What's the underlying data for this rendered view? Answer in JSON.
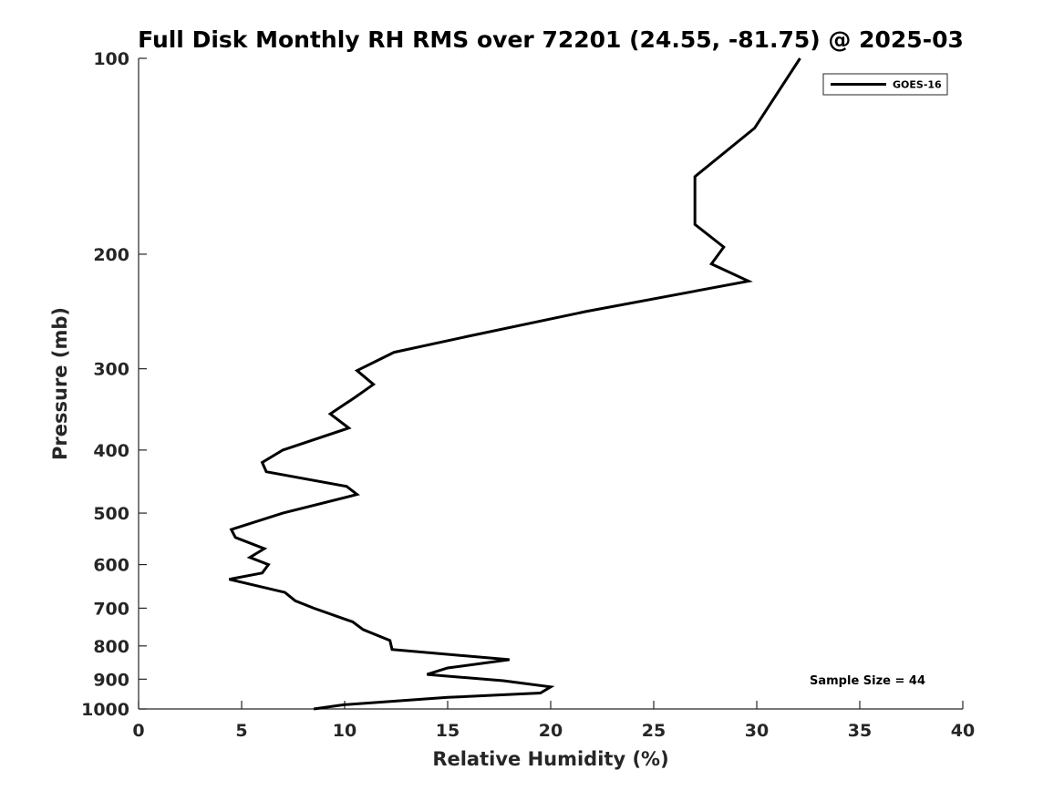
{
  "chart_data": {
    "type": "line",
    "title": "Full Disk Monthly RH RMS over 72201 (24.55, -81.75) @ 2025-03",
    "xlabel": "Relative Humidity (%)",
    "ylabel": "Pressure (mb)",
    "xlim": [
      0,
      40
    ],
    "ylim": [
      100,
      1000
    ],
    "yscale": "log",
    "y_reversed": true,
    "xticks": [
      0,
      5,
      10,
      15,
      20,
      25,
      30,
      35,
      40
    ],
    "yticks": [
      100,
      200,
      300,
      400,
      500,
      600,
      700,
      800,
      900,
      1000
    ],
    "grid": false,
    "legend_position": "top-right",
    "line_color": "#000000",
    "series": [
      {
        "name": "GOES-16",
        "x": [
          32.1,
          29.9,
          27.0,
          27.0,
          28.4,
          27.8,
          29.6,
          21.7,
          16.1,
          12.4,
          10.6,
          11.4,
          10.5,
          9.3,
          10.2,
          7.0,
          6.0,
          6.2,
          10.1,
          10.6,
          7.0,
          4.5,
          4.7,
          6.1,
          5.4,
          6.3,
          6.0,
          4.4,
          7.1,
          7.6,
          8.5,
          10.4,
          10.9,
          12.2,
          12.3,
          18.0,
          15.0,
          14.0,
          17.7,
          20.0,
          19.5,
          15.0,
          10.0,
          8.5
        ],
        "y": [
          100,
          128,
          152,
          180,
          195,
          207,
          220,
          245,
          267,
          283,
          302,
          317,
          332,
          352,
          370,
          400,
          418,
          432,
          455,
          468,
          500,
          530,
          545,
          567,
          585,
          600,
          618,
          632,
          662,
          682,
          700,
          735,
          755,
          785,
          810,
          840,
          865,
          885,
          905,
          925,
          945,
          960,
          985,
          1000
        ]
      }
    ],
    "legend": [
      "GOES-16"
    ],
    "annotation": "Sample Size = 44"
  }
}
